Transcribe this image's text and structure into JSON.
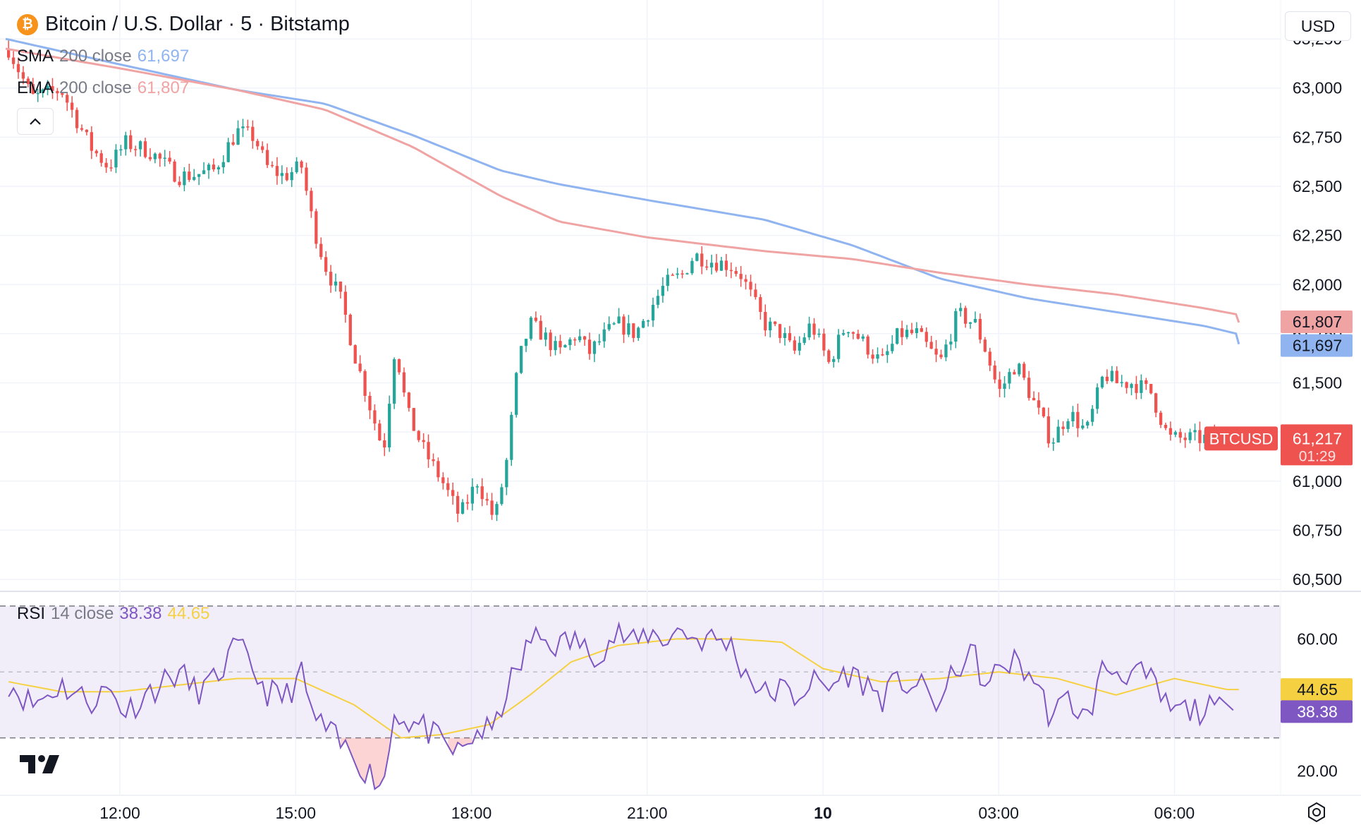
{
  "header": {
    "title": "Bitcoin / U.S. Dollar · 5 · Bitstamp",
    "coin_glyph": "₿",
    "currency": "USD"
  },
  "indicators": {
    "sma": {
      "name": "SMA",
      "params": "200 close",
      "value": "61,697",
      "color": "#90b4f0"
    },
    "ema": {
      "name": "EMA",
      "params": "200 close",
      "value": "61,807",
      "color": "#f0a3a3"
    },
    "rsi": {
      "name": "RSI",
      "params": "14 close",
      "value": "38.38",
      "ma_value": "44.65",
      "color": "#7e57c2",
      "ma_color": "#f5d142"
    }
  },
  "price_labels": {
    "ticker": "BTCUSD",
    "last_price": "61,217",
    "countdown": "01:29",
    "ema_tag": "61,807",
    "sma_tag": "61,697"
  },
  "rsi_labels": {
    "rsi_ma_tag": "44.65",
    "rsi_tag": "38.38"
  },
  "colors": {
    "up": "#26a69a",
    "down": "#ef5350",
    "rsi_band": "#7e57c2"
  },
  "chart_data": {
    "type": "candlestick",
    "price_axis": {
      "ticks": [
        63250,
        63000,
        62750,
        62500,
        62250,
        62000,
        61750,
        61500,
        61250,
        61000,
        60750,
        60500
      ],
      "tick_labels": [
        "63,250",
        "63,000",
        "62,750",
        "62,500",
        "62,250",
        "62,000",
        "61,750",
        "61,500",
        "61,250",
        "61,000",
        "60,750",
        "60,500"
      ],
      "ylim": [
        60450,
        63340
      ]
    },
    "time_axis": {
      "ticks": [
        "12:00",
        "15:00",
        "18:00",
        "21:00",
        "10",
        "03:00",
        "06:00"
      ],
      "tick_hours": [
        12,
        15,
        18,
        21,
        24,
        27,
        30
      ],
      "xlim_hours": [
        10.05,
        31.8
      ]
    },
    "close_anchors": {
      "hours": [
        10.1,
        10.5,
        11.0,
        11.5,
        11.8,
        12.1,
        12.5,
        13.0,
        13.3,
        13.6,
        14.0,
        14.3,
        14.5,
        14.8,
        15.1,
        15.3,
        15.5,
        15.8,
        16.0,
        16.2,
        16.5,
        16.7,
        16.9,
        17.2,
        17.5,
        17.8,
        18.1,
        18.4,
        18.6,
        18.8,
        19.0,
        19.2,
        19.5,
        19.8,
        20.0,
        20.3,
        20.5,
        20.8,
        21.0,
        21.3,
        21.6,
        21.8,
        22.1,
        22.4,
        22.6,
        23.0,
        23.3,
        23.5,
        23.8,
        24.1,
        24.4,
        24.7,
        25.0,
        25.3,
        25.6,
        26.0,
        26.3,
        26.6,
        26.8,
        27.0,
        27.3,
        27.6,
        27.9,
        28.2,
        28.5,
        28.8,
        29.0,
        29.3,
        29.6,
        29.9,
        30.2,
        30.4,
        30.7,
        30.9
      ],
      "closes": [
        63200,
        62950,
        62990,
        62700,
        62600,
        62720,
        62680,
        62550,
        62560,
        62580,
        62780,
        62750,
        62600,
        62550,
        62600,
        62300,
        62100,
        61900,
        61650,
        61450,
        61150,
        61700,
        61350,
        61150,
        61000,
        60820,
        61000,
        60800,
        61100,
        61600,
        61800,
        61750,
        61650,
        61750,
        61650,
        61750,
        61800,
        61750,
        61850,
        62000,
        62050,
        62150,
        62120,
        62100,
        62050,
        61800,
        61750,
        61650,
        61800,
        61600,
        61800,
        61700,
        61600,
        61750,
        61750,
        61600,
        61850,
        61800,
        61650,
        61450,
        61600,
        61400,
        61200,
        61350,
        61250,
        61550,
        61500,
        61500,
        61450,
        61217,
        61217,
        61217,
        61217,
        61217
      ]
    },
    "sma200": {
      "hours": [
        10.05,
        12.0,
        14.0,
        15.5,
        17.0,
        18.5,
        19.5,
        21.0,
        23.0,
        24.5,
        26.0,
        27.5,
        29.0,
        30.5,
        31.8
      ],
      "values": [
        63250,
        63120,
        62990,
        62920,
        62760,
        62580,
        62510,
        62430,
        62330,
        62200,
        62030,
        61930,
        61860,
        61790,
        61697
      ]
    },
    "ema200": {
      "hours": [
        10.05,
        12.0,
        14.0,
        15.5,
        17.0,
        18.5,
        19.5,
        21.0,
        23.0,
        24.5,
        26.0,
        27.5,
        29.0,
        30.5,
        31.8
      ],
      "values": [
        63200,
        63100,
        62990,
        62890,
        62700,
        62450,
        62320,
        62240,
        62170,
        62130,
        62060,
        62000,
        61950,
        61880,
        61807
      ]
    },
    "rsi": {
      "ticks": [
        60,
        20
      ],
      "tick_labels": [
        "60.00",
        "20.00"
      ],
      "bands": [
        70,
        30
      ],
      "ylim": [
        13,
        74
      ],
      "hours": [
        10.1,
        10.5,
        11.0,
        11.5,
        11.8,
        12.1,
        12.5,
        13.0,
        13.3,
        13.6,
        14.0,
        14.3,
        14.5,
        14.8,
        15.1,
        15.3,
        15.5,
        15.8,
        16.0,
        16.2,
        16.5,
        16.7,
        16.9,
        17.2,
        17.5,
        17.8,
        18.1,
        18.4,
        18.6,
        18.8,
        19.0,
        19.2,
        19.5,
        19.8,
        20.0,
        20.3,
        20.5,
        20.8,
        21.0,
        21.3,
        21.6,
        21.8,
        22.1,
        22.4,
        22.6,
        23.0,
        23.3,
        23.5,
        23.8,
        24.1,
        24.4,
        24.7,
        25.0,
        25.3,
        25.6,
        26.0,
        26.3,
        26.6,
        26.8,
        27.0,
        27.3,
        27.6,
        27.9,
        28.2,
        28.5,
        28.8,
        29.0,
        29.3,
        29.6,
        29.9,
        30.2,
        30.4,
        30.7,
        30.9
      ],
      "values": [
        47,
        40,
        46,
        41,
        45,
        38,
        44,
        50,
        44,
        47,
        58,
        50,
        44,
        42,
        49,
        36,
        33,
        27,
        25,
        20,
        16,
        39,
        35,
        33,
        28,
        25,
        32,
        32,
        45,
        50,
        60,
        60,
        58,
        60,
        55,
        58,
        62,
        58,
        62,
        60,
        63,
        60,
        60,
        59,
        52,
        43,
        45,
        42,
        47,
        45,
        50,
        47,
        42,
        47,
        46,
        40,
        52,
        55,
        43,
        52,
        53,
        48,
        36,
        42,
        35,
        52,
        50,
        50,
        47,
        38.38,
        38.38,
        38.38,
        38.38,
        38.38
      ],
      "ma_hours": [
        10.1,
        11.0,
        12.0,
        13.0,
        14.0,
        15.0,
        16.0,
        16.8,
        17.5,
        18.3,
        19.0,
        19.7,
        20.5,
        21.5,
        22.5,
        23.3,
        24.0,
        25.0,
        26.0,
        27.0,
        28.0,
        29.0,
        30.0,
        30.9
      ],
      "ma_values": [
        47,
        44,
        44,
        46,
        48,
        48,
        40,
        30,
        31,
        34,
        43,
        53,
        58,
        60,
        60,
        59,
        51,
        47,
        48,
        50,
        48,
        43,
        48,
        44.65
      ]
    }
  }
}
